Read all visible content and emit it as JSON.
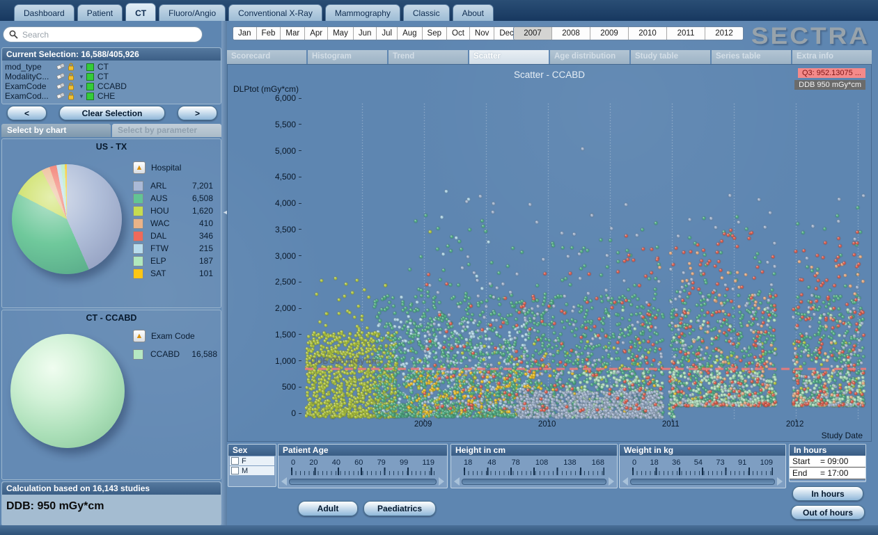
{
  "app": {
    "logo": "SECTRA"
  },
  "top_tabs": [
    {
      "label": "Dashboard",
      "active": false
    },
    {
      "label": "Patient",
      "active": false
    },
    {
      "label": "CT",
      "active": true
    },
    {
      "label": "Fluoro/Angio",
      "active": false
    },
    {
      "label": "Conventional X-Ray",
      "active": false
    },
    {
      "label": "Mammography",
      "active": false
    },
    {
      "label": "Classic",
      "active": false
    },
    {
      "label": "About",
      "active": false
    }
  ],
  "search": {
    "placeholder": "Search"
  },
  "months": [
    "Jan",
    "Feb",
    "Mar",
    "Apr",
    "May",
    "Jun",
    "Jul",
    "Aug",
    "Sep",
    "Oct",
    "Nov",
    "Dec"
  ],
  "years": [
    {
      "label": "2007",
      "active": true
    },
    {
      "label": "2008",
      "active": false
    },
    {
      "label": "2009",
      "active": false
    },
    {
      "label": "2010",
      "active": false
    },
    {
      "label": "2011",
      "active": false
    },
    {
      "label": "2012",
      "active": false
    }
  ],
  "sidebar": {
    "current_selection": {
      "title": "Current Selection: 16,588/405,926",
      "filters": [
        {
          "name": "mod_type",
          "value": "CT"
        },
        {
          "name": "ModalityC...",
          "value": "CT"
        },
        {
          "name": "ExamCode",
          "value": "CCABD"
        },
        {
          "name": "ExamCod...",
          "value": "CHE"
        }
      ]
    },
    "nav": {
      "prev": "<",
      "clear": "Clear Selection",
      "next": ">"
    },
    "select_tabs": [
      {
        "label": "Select by chart",
        "active": true
      },
      {
        "label": "Select by parameter",
        "active": false
      }
    ],
    "hospital_chart": {
      "title": "US - TX",
      "dimension": "Hospital",
      "items": [
        {
          "label": "ARL",
          "value": "7,201",
          "color": "#aab9d6"
        },
        {
          "label": "AUS",
          "value": "6,508",
          "color": "#63c493"
        },
        {
          "label": "HOU",
          "value": "1,620",
          "color": "#c6dc50"
        },
        {
          "label": "WAC",
          "value": "410",
          "color": "#eab388"
        },
        {
          "label": "DAL",
          "value": "346",
          "color": "#f0695a"
        },
        {
          "label": "FTW",
          "value": "215",
          "color": "#b8dcec"
        },
        {
          "label": "ELP",
          "value": "187",
          "color": "#b0e8bd"
        },
        {
          "label": "SAT",
          "value": "101",
          "color": "#fbc615"
        }
      ]
    },
    "exam_chart": {
      "title": "CT - CCABD",
      "dimension": "Exam Code",
      "items": [
        {
          "label": "CCABD",
          "value": "16,588",
          "color": "#b6e8c2"
        }
      ]
    },
    "calculation": {
      "title": "Calculation based on 16,143 studies",
      "value": "DDB:  950 mGy*cm"
    }
  },
  "chart_tabs": [
    {
      "label": "Scorecard",
      "active": false
    },
    {
      "label": "Histogram",
      "active": false
    },
    {
      "label": "Trend",
      "active": false
    },
    {
      "label": "Scatter",
      "active": true
    },
    {
      "label": "Age distribution",
      "active": false
    },
    {
      "label": "Study table",
      "active": false
    },
    {
      "label": "Series table",
      "active": false
    },
    {
      "label": "Extra info",
      "active": false
    }
  ],
  "chart": {
    "title": "Scatter - CCABD",
    "badge_q3": "Q3: 952.13075 ...",
    "badge_ddb": "DDB 950 mGy*cm",
    "y_axis_label": "DLPtot (mGy*cm)",
    "x_axis_label": "Study Date",
    "y_tick_labels": [
      "6,000",
      "5,500",
      "5,000",
      "4,500",
      "4,000",
      "3,500",
      "3,000",
      "2,500",
      "2,000",
      "1,500",
      "1,000",
      "500",
      "0"
    ]
  },
  "chart_data": {
    "type": "scatter",
    "title": "Scatter - CCABD",
    "xlabel": "Study Date",
    "ylabel": "DLPtot (mGy*cm)",
    "xlim": [
      2008.04,
      2012.55
    ],
    "ylim": [
      0,
      6000
    ],
    "x_tick_years": [
      2009,
      2010,
      2011,
      2012
    ],
    "y_ticks": [
      0,
      500,
      1000,
      1500,
      2000,
      2500,
      3000,
      3500,
      4000,
      4500,
      5000,
      5500,
      6000
    ],
    "grid": "vertical dotted lines every half year",
    "reference_line": {
      "y": 950,
      "label": "DDB 950 mGy*cm",
      "color": "#e87c7c",
      "style": "dashed"
    },
    "legend_position": "none (colors keyed to Hospital legend in sidebar)",
    "gaps_x": [
      [
        2010.93,
        2010.98
      ],
      [
        2011.84,
        2011.98
      ]
    ],
    "min_y_after_2011": 250,
    "series": [
      {
        "name": "FTW",
        "color": "#b2d8e9",
        "clusters": [
          {
            "x": [
              2008.62,
              2009.85
            ],
            "y": [
              40,
              1900
            ],
            "count": 520,
            "bias": 1.5
          },
          {
            "x": [
              2008.7,
              2009.6
            ],
            "y": [
              1900,
              4300
            ],
            "count": 10,
            "bias": 1.4
          }
        ]
      },
      {
        "name": "SAT",
        "color": "#f1bf1d",
        "clusters": [
          {
            "x": [
              2008.85,
              2009.95
            ],
            "y": [
              40,
              900
            ],
            "count": 300,
            "bias": 1.3
          },
          {
            "x": [
              2009.95,
              2011.3
            ],
            "y": [
              100,
              1200
            ],
            "count": 55,
            "bias": 1.5
          }
        ]
      },
      {
        "name": "HOU",
        "color": "#b5c93a",
        "clusters": [
          {
            "x": [
              2008.05,
              2008.78
            ],
            "y": [
              30,
              1650
            ],
            "count": 950,
            "bias": 1.5
          },
          {
            "x": [
              2008.1,
              2008.7
            ],
            "y": [
              1500,
              2700
            ],
            "count": 30,
            "bias": 1.2
          },
          {
            "x": [
              2008.78,
              2012.55
            ],
            "y": [
              60,
              1500
            ],
            "count": 260,
            "bias": 1.9
          }
        ]
      },
      {
        "name": "AUS",
        "color": "#52b184",
        "clusters": [
          {
            "x": [
              2008.6,
              2012.55
            ],
            "y": [
              40,
              2350
            ],
            "count": 2600,
            "bias": 1.7
          },
          {
            "x": [
              2008.8,
              2012.55
            ],
            "y": [
              2350,
              3900
            ],
            "count": 110,
            "bias": 1.4
          }
        ]
      },
      {
        "name": "ELP",
        "color": "#b5e4bf",
        "clusters": [
          {
            "x": [
              2010.15,
              2012.55
            ],
            "y": [
              30,
              900
            ],
            "count": 700,
            "bias": 1.4
          },
          {
            "x": [
              2010.3,
              2012.55
            ],
            "y": [
              900,
              2100
            ],
            "count": 70,
            "bias": 1.4
          }
        ]
      },
      {
        "name": "ARL",
        "color": "#a6b6d0",
        "clusters": [
          {
            "x": [
              2009.75,
              2010.95
            ],
            "y": [
              20,
              520
            ],
            "count": 650,
            "bias": 1.2
          },
          {
            "x": [
              2009.0,
              2012.55
            ],
            "y": [
              200,
              2600
            ],
            "count": 430,
            "bias": 1.8
          },
          {
            "x": [
              2009.3,
              2012.55
            ],
            "y": [
              2600,
              4300
            ],
            "count": 55,
            "bias": 1.3
          }
        ]
      },
      {
        "name": "WAC",
        "color": "#e9a97d",
        "clusters": [
          {
            "x": [
              2010.9,
              2012.55
            ],
            "y": [
              200,
              3200
            ],
            "count": 140,
            "bias": 1.6
          }
        ]
      },
      {
        "name": "DAL",
        "color": "#e25b49",
        "clusters": [
          {
            "x": [
              2009.0,
              2010.6
            ],
            "y": [
              150,
              2800
            ],
            "count": 120,
            "bias": 1.6
          },
          {
            "x": [
              2010.6,
              2012.55
            ],
            "y": [
              150,
              3600
            ],
            "count": 380,
            "bias": 1.6
          }
        ]
      }
    ],
    "outlier_points": [
      {
        "series": "ARL",
        "x": 2010.28,
        "y": 5140
      },
      {
        "series": "FTW",
        "x": 2009.18,
        "y": 4330
      },
      {
        "series": "HOU",
        "x": 2009.05,
        "y": 3560
      },
      {
        "series": "ARL",
        "x": 2012.35,
        "y": 4180
      },
      {
        "series": "AUS",
        "x": 2012.5,
        "y": 4020
      }
    ]
  },
  "filters": {
    "sex": {
      "title": "Sex",
      "options": [
        "F",
        "M"
      ]
    },
    "age": {
      "title": "Patient Age",
      "ticks": [
        "0",
        "20",
        "40",
        "60",
        "79",
        "99",
        "119"
      ]
    },
    "height": {
      "title": "Height in cm",
      "ticks": [
        "18",
        "48",
        "78",
        "108",
        "138",
        "168"
      ]
    },
    "weight": {
      "title": "Weight in kg",
      "ticks": [
        "0",
        "18",
        "36",
        "54",
        "73",
        "91",
        "109"
      ]
    },
    "hours": {
      "title": "In hours",
      "rows": [
        {
          "label": "Start",
          "value": "= 09:00"
        },
        {
          "label": "End",
          "value": "= 17:00"
        }
      ]
    }
  },
  "buttons": {
    "adult": "Adult",
    "paediatrics": "Paediatrics",
    "in_hours": "In hours",
    "out_of_hours": "Out of hours"
  }
}
